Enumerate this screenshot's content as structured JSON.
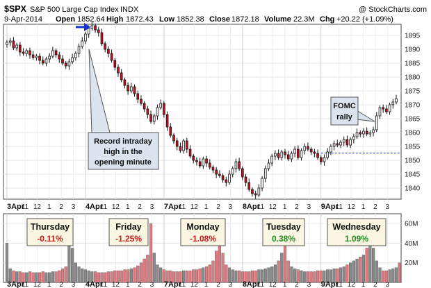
{
  "header": {
    "symbol": "$SPX",
    "name": "S&P 500 Large Cap Index",
    "exchange": "INDX",
    "source": "@ StockCharts.com",
    "date": "9-Apr-2014",
    "open_label": "Open",
    "open_value": "1852.64",
    "high_label": "High",
    "high_value": "1872.43",
    "low_label": "Low",
    "low_value": "1852.38",
    "close_label": "Close",
    "close_value": "1872.18",
    "volume_label": "Volume",
    "volume_value": "22.3M",
    "chg_label": "Chg",
    "chg_value": "+20.22 (+1.09%)"
  },
  "colors": {
    "up": "#ffffff",
    "down": "#cc1122",
    "vol_up": "#888888",
    "vol_down": "#e07880",
    "callout": "#dbe3ef",
    "arrow": "#1133cc",
    "pos": "#1f8a1f",
    "neg": "#c41a1a"
  },
  "chart_data": {
    "type": "candlestick",
    "title": "$SPX S&P 500 Large Cap Index INDX",
    "interval": "5-minute",
    "ylim": [
      1836,
      1899
    ],
    "y_ticks": [
      1840,
      1845,
      1850,
      1855,
      1860,
      1865,
      1870,
      1875,
      1880,
      1885,
      1890,
      1895
    ],
    "volume_ylim": [
      0,
      70
    ],
    "volume_ticks": [
      "20M",
      "40M",
      "60M"
    ],
    "x_ticks": [
      "3Apr",
      "11",
      "12",
      "1",
      "2",
      "3",
      "4Apr",
      "11",
      "12",
      "1",
      "2",
      "3",
      "7Apr",
      "11",
      "12",
      "1",
      "2",
      "3",
      "8Apr",
      "11",
      "12",
      "1",
      "2",
      "3",
      "9Apr",
      "11",
      "12",
      "1",
      "2",
      "3"
    ],
    "ref_line": 1852.6,
    "closes": [
      1892.5,
      1893.0,
      1890.5,
      1891.5,
      1889.0,
      1888.5,
      1889.5,
      1888.0,
      1887.0,
      1887.5,
      1886.0,
      1885.0,
      1886.5,
      1887.5,
      1889.5,
      1888.0,
      1886.5,
      1885.0,
      1884.0,
      1885.5,
      1887.0,
      1888.5,
      1891.0,
      1893.0,
      1895.5,
      1897.5,
      1898.5,
      1897.0,
      1896.0,
      1892.0,
      1890.0,
      1888.5,
      1886.0,
      1883.5,
      1881.5,
      1879.0,
      1877.0,
      1875.0,
      1876.5,
      1874.0,
      1872.0,
      1870.5,
      1868.5,
      1866.5,
      1864.0,
      1866.0,
      1869.0,
      1870.5,
      1866.5,
      1862.0,
      1859.0,
      1857.0,
      1855.0,
      1853.5,
      1857.0,
      1854.0,
      1851.5,
      1850.0,
      1849.5,
      1848.0,
      1850.5,
      1849.0,
      1847.5,
      1846.5,
      1845.0,
      1844.5,
      1843.0,
      1842.0,
      1845.0,
      1847.0,
      1849.5,
      1847.0,
      1844.0,
      1842.0,
      1839.5,
      1838.0,
      1837.5,
      1840.0,
      1843.5,
      1847.0,
      1849.0,
      1851.5,
      1852.5,
      1851.0,
      1853.0,
      1852.0,
      1850.5,
      1852.5,
      1854.0,
      1851.0,
      1853.5,
      1855.0,
      1854.0,
      1853.0,
      1852.5,
      1851.0,
      1849.5,
      1851.0,
      1853.0,
      1855.0,
      1856.0,
      1855.5,
      1856.5,
      1857.5,
      1855.5,
      1857.5,
      1858.5,
      1860.0,
      1859.5,
      1860.5,
      1859.5,
      1860.0,
      1861.0,
      1866.0,
      1869.0,
      1868.5,
      1867.5,
      1870.0,
      1871.0,
      1872.2
    ],
    "volumes": [
      40,
      14,
      12,
      11,
      11,
      10,
      10,
      11,
      10,
      10,
      10,
      11,
      10,
      10,
      11,
      11,
      12,
      14,
      16,
      60,
      35,
      20,
      16,
      14,
      13,
      12,
      11,
      11,
      10,
      10,
      10,
      11,
      11,
      12,
      12,
      12,
      13,
      13,
      14,
      15,
      17,
      20,
      24,
      28,
      60,
      30,
      18,
      15,
      13,
      12,
      12,
      11,
      11,
      11,
      12,
      12,
      12,
      13,
      13,
      14,
      15,
      16,
      18,
      22,
      32,
      56,
      30,
      18,
      15,
      13,
      12,
      12,
      11,
      11,
      11,
      12,
      12,
      13,
      13,
      14,
      15,
      16,
      18,
      22,
      30,
      50,
      22,
      16,
      14,
      13,
      12,
      11,
      11,
      11,
      11,
      12,
      12,
      12,
      13,
      13,
      14,
      14,
      15,
      16,
      18,
      20,
      22,
      24,
      26,
      28,
      35,
      60,
      35,
      22,
      15,
      12,
      12,
      13,
      14,
      15,
      20
    ],
    "sessions": [
      {
        "day": "Thursday",
        "change": "-0.11%"
      },
      {
        "day": "Friday",
        "change": "-1.25%"
      },
      {
        "day": "Monday",
        "change": "-1.08%"
      },
      {
        "day": "Tuesday",
        "change": "0.38%"
      },
      {
        "day": "Wednesday",
        "change": "1.09%"
      }
    ],
    "annotations": {
      "record": [
        "Record intraday",
        "high in the",
        "opening minute"
      ],
      "fomc": [
        "FOMC",
        "rally"
      ]
    }
  }
}
